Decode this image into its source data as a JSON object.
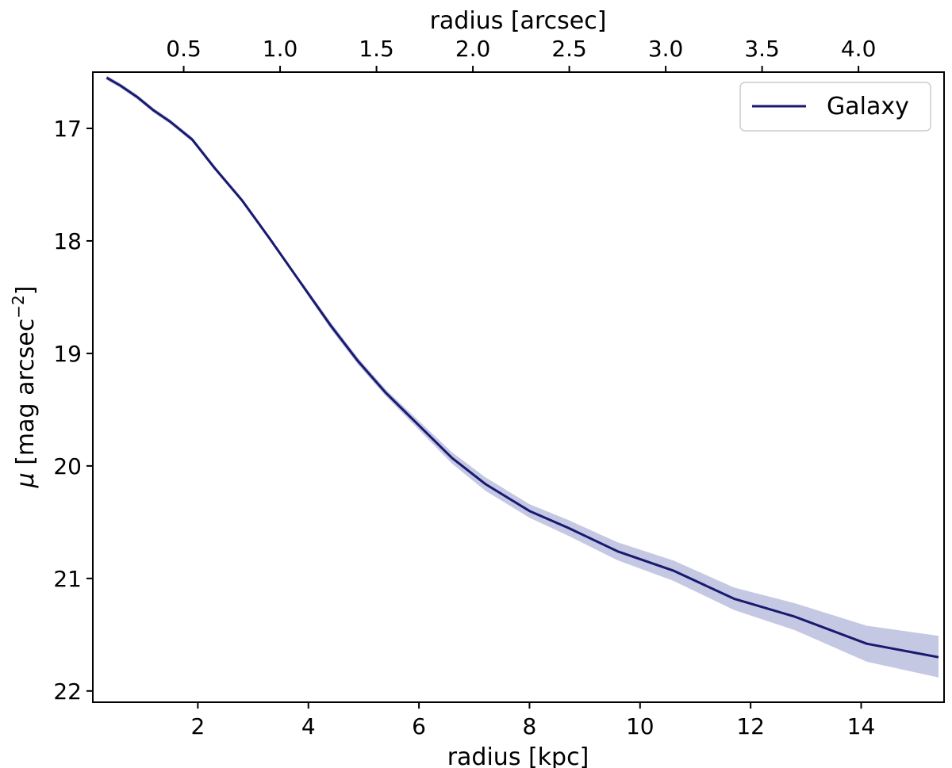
{
  "chart_data": {
    "type": "line",
    "xlabel": "radius [kpc]",
    "x2label": "radius [arcsec]",
    "ylabel_prefix": "μ",
    "ylabel_main": " [mag arcsec",
    "ylabel_sup": "−2",
    "ylabel_suffix": "]",
    "xlim": [
      0.1,
      15.5
    ],
    "ylim": [
      22.1,
      16.5
    ],
    "y_inverted": true,
    "x_ticks": [
      2,
      4,
      6,
      8,
      10,
      12,
      14
    ],
    "y_ticks": [
      17,
      18,
      19,
      20,
      21,
      22
    ],
    "x2_ticks": [
      0.5,
      1.0,
      1.5,
      2.0,
      2.5,
      3.0,
      3.5,
      4.0
    ],
    "x2_tick_labels": [
      "0.5",
      "1.0",
      "1.5",
      "2.0",
      "2.5",
      "3.0",
      "3.5",
      "4.0"
    ],
    "arcsec_per_kpc": 0.2867,
    "grid": false,
    "legend_position": "top-right",
    "series": [
      {
        "name": "Galaxy",
        "color": "#191970",
        "band_color": "#c5c8e3",
        "x": [
          0.35,
          0.6,
          0.9,
          1.2,
          1.5,
          1.9,
          2.3,
          2.8,
          3.3,
          3.8,
          4.4,
          4.9,
          5.4,
          6.0,
          6.6,
          7.2,
          8.0,
          8.7,
          9.6,
          10.6,
          11.7,
          12.8,
          14.1,
          15.4
        ],
        "y": [
          16.55,
          16.62,
          16.72,
          16.84,
          16.94,
          17.1,
          17.35,
          17.64,
          17.98,
          18.33,
          18.75,
          19.07,
          19.35,
          19.64,
          19.93,
          20.16,
          20.4,
          20.55,
          20.76,
          20.93,
          21.18,
          21.34,
          21.58,
          21.7
        ],
        "y_lower": [
          16.53,
          16.6,
          16.7,
          16.82,
          16.92,
          17.08,
          17.33,
          17.62,
          17.96,
          18.31,
          18.72,
          19.04,
          19.32,
          19.6,
          19.88,
          20.1,
          20.34,
          20.48,
          20.68,
          20.84,
          21.08,
          21.22,
          21.42,
          21.51
        ],
        "y_upper": [
          16.57,
          16.64,
          16.74,
          16.86,
          16.96,
          17.12,
          17.37,
          17.66,
          18.0,
          18.35,
          18.78,
          19.1,
          19.38,
          19.68,
          19.98,
          20.22,
          20.46,
          20.62,
          20.84,
          21.02,
          21.28,
          21.46,
          21.74,
          21.88
        ]
      }
    ]
  }
}
